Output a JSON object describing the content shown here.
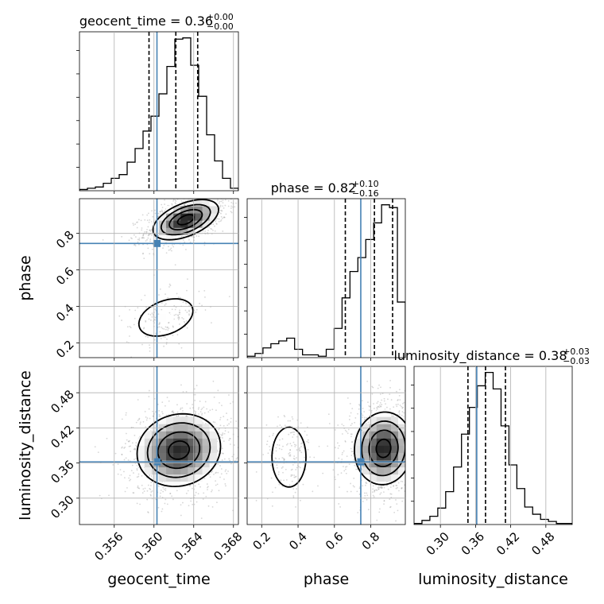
{
  "chart_data": {
    "type": "corner",
    "parameters": [
      "geocent_time",
      "phase",
      "luminosity_distance"
    ],
    "truths": {
      "geocent_time": 0.3603,
      "phase": 0.745,
      "luminosity_distance": 0.362
    },
    "ranges": {
      "geocent_time": [
        0.3525,
        0.3685
      ],
      "phase": [
        0.12,
        0.99
      ],
      "luminosity_distance": [
        0.255,
        0.525
      ]
    },
    "ticks": {
      "geocent_time": {
        "values": [
          0.356,
          0.36,
          0.364,
          0.368
        ],
        "labels": [
          "0.356",
          "0.360",
          "0.364",
          "0.368"
        ]
      },
      "phase": {
        "values": [
          0.2,
          0.4,
          0.6,
          0.8
        ],
        "labels": [
          "0.2",
          "0.4",
          "0.6",
          "0.8"
        ]
      },
      "luminosity_distance": {
        "values": [
          0.3,
          0.36,
          0.42,
          0.48
        ],
        "labels": [
          "0.30",
          "0.36",
          "0.42",
          "0.48"
        ]
      }
    },
    "titles": [
      {
        "param": "geocent_time",
        "text": "geocent_time = 0.36",
        "upper": "+0.00",
        "lower": "−0.00",
        "quantiles": [
          0.3595,
          0.3622,
          0.3644
        ]
      },
      {
        "param": "phase",
        "text": "phase = 0.82",
        "upper": "+0.10",
        "lower": "−0.16",
        "quantiles": [
          0.66,
          0.82,
          0.92
        ]
      },
      {
        "param": "luminosity_distance",
        "text": "luminosity_distance = 0.38",
        "upper": "+0.03",
        "lower": "−0.03",
        "quantiles": [
          0.347,
          0.377,
          0.411
        ]
      }
    ],
    "histograms": {
      "geocent_time": {
        "bin_edges": [
          0.3525,
          0.3533,
          0.3541,
          0.3549,
          0.3557,
          0.3565,
          0.3573,
          0.3581,
          0.3589,
          0.3597,
          0.3605,
          0.3613,
          0.3621,
          0.3629,
          0.3637,
          0.3645,
          0.3653,
          0.3661,
          0.3669,
          0.3677,
          0.3685
        ],
        "counts": [
          1,
          2,
          3,
          6,
          10,
          13,
          23,
          34,
          48,
          60,
          78,
          100,
          122,
          123,
          101,
          76,
          45,
          24,
          10,
          2
        ]
      },
      "phase": {
        "bin_edges": [
          0.12,
          0.1635,
          0.207,
          0.2505,
          0.294,
          0.3375,
          0.381,
          0.4245,
          0.468,
          0.5115,
          0.555,
          0.5985,
          0.642,
          0.6855,
          0.729,
          0.7725,
          0.816,
          0.8595,
          0.903,
          0.9465,
          0.99
        ],
        "counts": [
          1,
          3,
          7,
          10,
          12,
          14,
          6,
          2,
          2,
          1,
          6,
          21,
          43,
          62,
          72,
          85,
          97,
          110,
          108,
          40
        ]
      },
      "luminosity_distance": {
        "bin_edges": [
          0.255,
          0.2685,
          0.282,
          0.2955,
          0.309,
          0.3225,
          0.336,
          0.3495,
          0.363,
          0.3765,
          0.39,
          0.4035,
          0.417,
          0.4305,
          0.444,
          0.4575,
          0.471,
          0.4845,
          0.498,
          0.5115,
          0.525
        ],
        "counts": [
          1,
          4,
          8,
          16,
          32,
          56,
          88,
          114,
          135,
          148,
          132,
          96,
          58,
          35,
          17,
          10,
          5,
          3,
          1,
          1
        ]
      }
    },
    "density_blobs": [
      {
        "pair": [
          "geocent_time",
          "phase"
        ],
        "center": [
          0.3632,
          0.875
        ],
        "spread": [
          0.00165,
          0.055
        ],
        "corr": 0.5,
        "weight": 0.88
      },
      {
        "pair": [
          "geocent_time",
          "phase"
        ],
        "center": [
          0.3612,
          0.34
        ],
        "spread": [
          0.0016,
          0.06
        ],
        "corr": 0.35,
        "weight": 0.12
      },
      {
        "pair": [
          "geocent_time",
          "luminosity_distance"
        ],
        "center": [
          0.3625,
          0.382
        ],
        "spread": [
          0.0021,
          0.031
        ],
        "corr": 0.1,
        "weight": 1.0
      },
      {
        "pair": [
          "phase",
          "luminosity_distance"
        ],
        "center": [
          0.87,
          0.385
        ],
        "spread": [
          0.08,
          0.031
        ],
        "corr": 0.05,
        "weight": 0.88
      },
      {
        "pair": [
          "phase",
          "luminosity_distance"
        ],
        "center": [
          0.35,
          0.37
        ],
        "spread": [
          0.055,
          0.03
        ],
        "corr": 0.0,
        "weight": 0.12
      }
    ],
    "grid": true,
    "colors": {
      "line": "#000000",
      "truth": "#4682b4",
      "grid": "#b0b0b0",
      "scatter": "#8c8c8c"
    }
  }
}
